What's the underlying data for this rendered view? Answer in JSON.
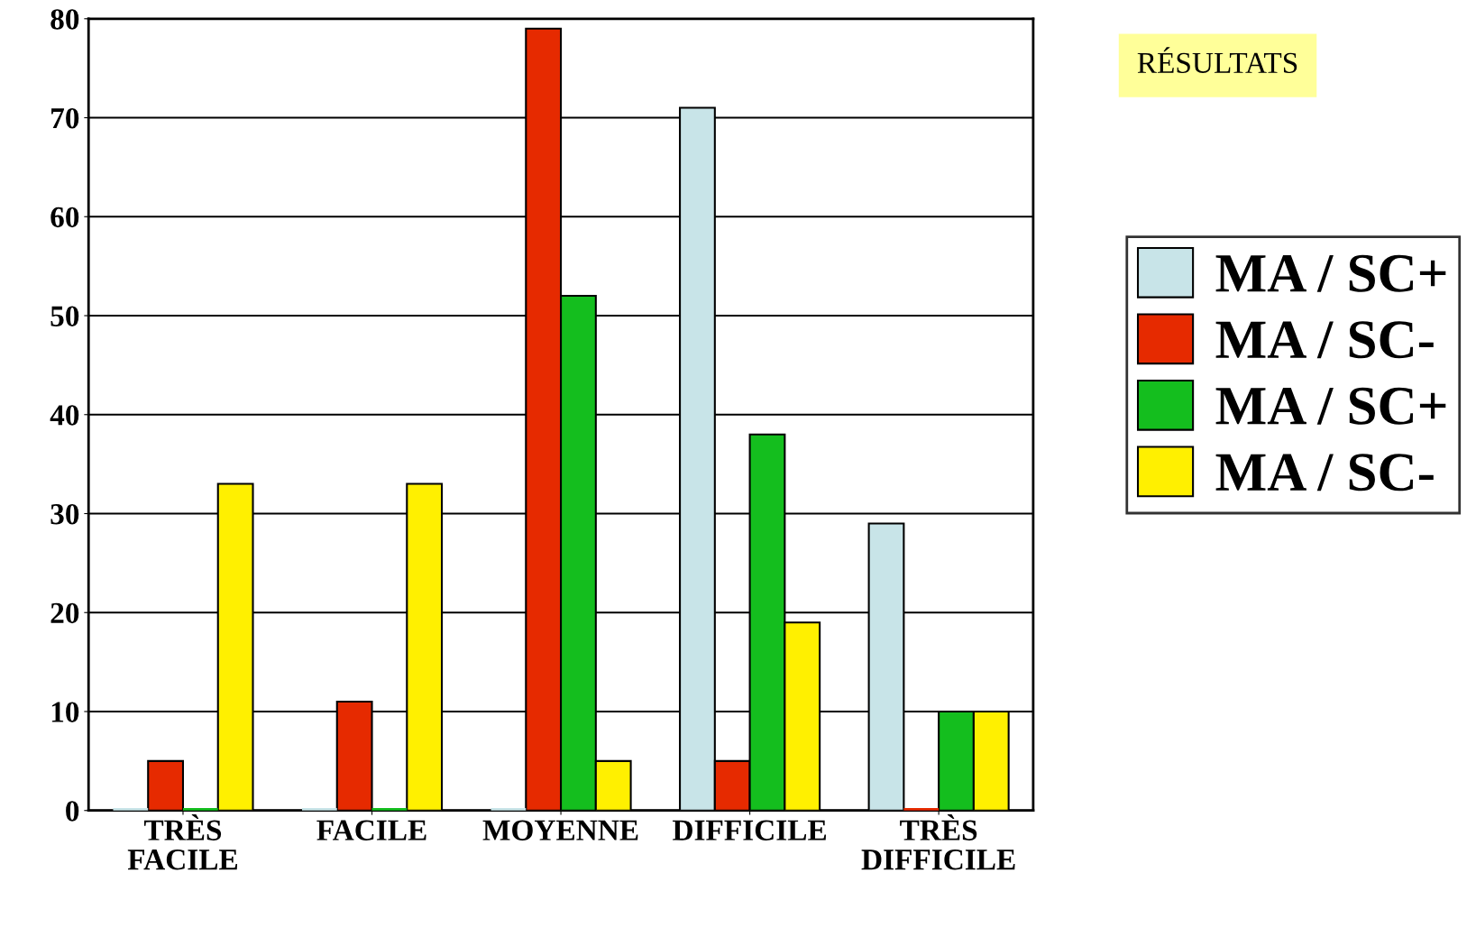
{
  "chart_data": {
    "type": "bar",
    "title": "RÉSULTATS",
    "categories": [
      "TRÈS\nFACILE",
      "FACILE",
      "MOYENNE",
      "DIFFICILE",
      "TRÈS\nDIFFICILE"
    ],
    "series": [
      {
        "name": "MA / SC+",
        "color": "#c8e4e8",
        "values": [
          0,
          0,
          0,
          71,
          29
        ]
      },
      {
        "name": "MA / SC-",
        "color": "#e62a00",
        "values": [
          5,
          11,
          79,
          5,
          0
        ]
      },
      {
        "name": "MA / SC+",
        "color": "#14be1e",
        "values": [
          0,
          0,
          52,
          38,
          10
        ]
      },
      {
        "name": "MA / SC-",
        "color": "#fff000",
        "values": [
          33,
          33,
          5,
          19,
          10
        ]
      }
    ],
    "ylim": [
      0,
      80
    ],
    "yticks": [
      0,
      10,
      20,
      30,
      40,
      50,
      60,
      70,
      80
    ],
    "grid": "y",
    "legend": "right"
  }
}
